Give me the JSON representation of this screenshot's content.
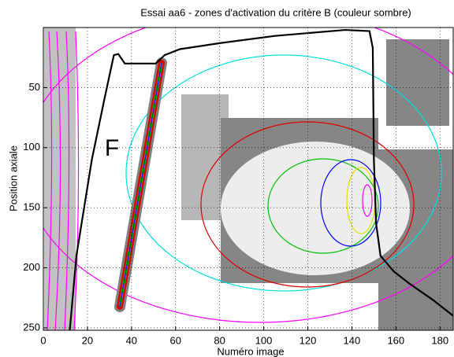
{
  "chart_data": {
    "type": "line",
    "title": "Essai aa6 - zones d'activation du critère B (couleur sombre)",
    "x_label": "Numéro image",
    "y_label": "Position axiale",
    "annotation": "F",
    "xlim": [
      0,
      186
    ],
    "ylim": [
      0,
      252
    ],
    "y_reversed": true,
    "grid": true,
    "xticks": [
      0,
      20,
      40,
      60,
      80,
      100,
      120,
      140,
      160,
      180
    ],
    "yticks": [
      50,
      100,
      150,
      200,
      250
    ],
    "series": [
      {
        "color": "#000000",
        "x": [
          12,
          15,
          22,
          28,
          32,
          34,
          37,
          51,
          55,
          62,
          80,
          105,
          137,
          148,
          149.5,
          150,
          151,
          153,
          159,
          166,
          177,
          186
        ],
        "values": [
          252,
          190,
          110,
          57,
          23,
          22,
          30,
          30,
          23,
          18,
          13,
          7,
          2,
          3,
          17,
          110,
          163,
          190,
          203,
          213,
          227,
          240
        ]
      }
    ]
  }
}
